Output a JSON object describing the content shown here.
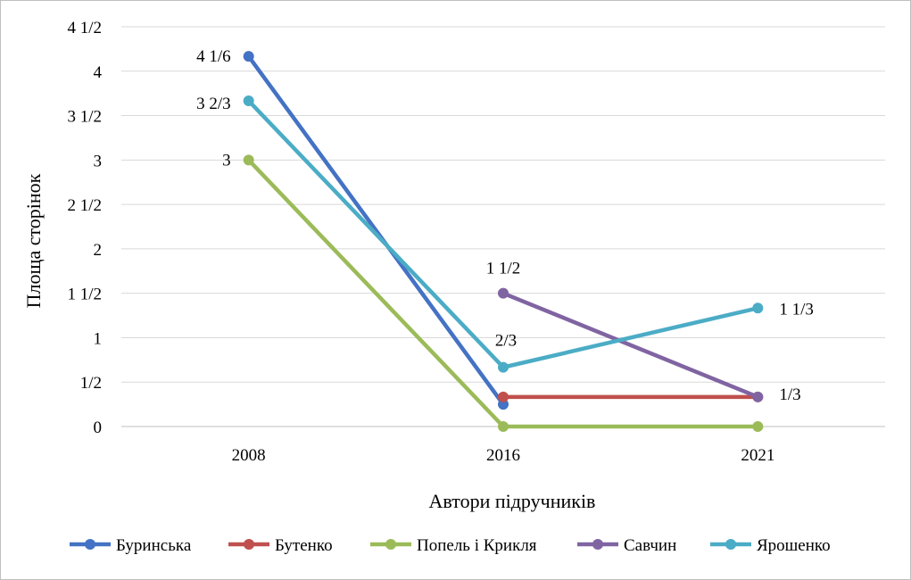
{
  "chart_data": {
    "type": "line",
    "title": "",
    "xlabel": "Автори підручників",
    "ylabel": "Площа сторінок",
    "ylim": [
      0,
      4.5
    ],
    "grid": true,
    "legend": "bottom",
    "categories": [
      "2008",
      "2016",
      "2021"
    ],
    "yticks": [
      {
        "value": 0,
        "label": "0"
      },
      {
        "value": 0.5,
        "label": "1/2"
      },
      {
        "value": 1,
        "label": "1"
      },
      {
        "value": 1.5,
        "label": "1 1/2"
      },
      {
        "value": 2,
        "label": "2"
      },
      {
        "value": 2.5,
        "label": "2 1/2"
      },
      {
        "value": 3,
        "label": "3"
      },
      {
        "value": 3.5,
        "label": "3 1/2"
      },
      {
        "value": 4,
        "label": "4"
      },
      {
        "value": 4.5,
        "label": "4 1/2"
      }
    ],
    "series": [
      {
        "name": "Буринська",
        "color": "#4472c4",
        "values": [
          4.1667,
          0.25,
          null
        ]
      },
      {
        "name": "Бутенко",
        "color": "#c0504d",
        "values": [
          null,
          0.3333,
          0.3333
        ]
      },
      {
        "name": "Попель і Крикля",
        "color": "#9bbb59",
        "values": [
          3,
          0,
          0
        ]
      },
      {
        "name": "Савчин",
        "color": "#8064a2",
        "values": [
          null,
          1.5,
          0.3333
        ]
      },
      {
        "name": "Ярошенко",
        "color": "#4bacc6",
        "values": [
          3.6667,
          0.6667,
          1.3333
        ]
      }
    ],
    "data_labels": [
      {
        "series": 0,
        "point": 0,
        "text": "4 1/6"
      },
      {
        "series": 4,
        "point": 0,
        "text": "3 2/3"
      },
      {
        "series": 2,
        "point": 0,
        "text": "3"
      },
      {
        "series": 3,
        "point": 1,
        "text": "1 1/2"
      },
      {
        "series": 4,
        "point": 1,
        "text": "2/3"
      },
      {
        "series": 4,
        "point": 2,
        "text": "1 1/3"
      },
      {
        "series": 3,
        "point": 2,
        "text": "1/3"
      }
    ]
  }
}
